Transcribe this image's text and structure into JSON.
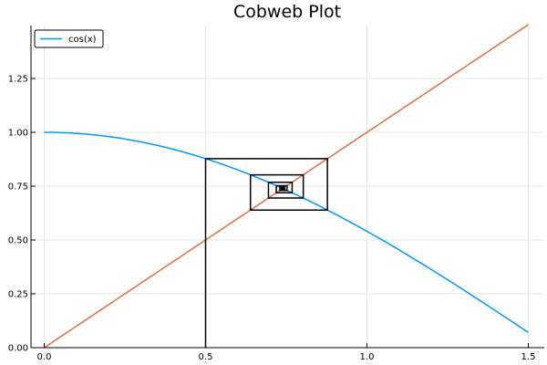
{
  "chart_data": {
    "type": "line",
    "title": "Cobweb Plot",
    "xlabel": "",
    "ylabel": "",
    "xlim": [
      0,
      1.5
    ],
    "ylim": [
      0,
      1.5
    ],
    "xticks": [
      0.0,
      0.5,
      1.0,
      1.5
    ],
    "xtick_labels": [
      "0.0",
      "0.5",
      "1.0",
      "1.5"
    ],
    "yticks": [
      0.0,
      0.25,
      0.5,
      0.75,
      1.0,
      1.25
    ],
    "ytick_labels": [
      "0.00",
      "0.25",
      "0.50",
      "0.75",
      "1.00",
      "1.25"
    ],
    "grid": true,
    "legend": {
      "placement": "top-left",
      "entries": [
        "cos(x)"
      ]
    },
    "series": [
      {
        "name": "cos(x)",
        "function": "cos",
        "x_range": [
          0,
          1.5
        ],
        "color": "#009AFA"
      },
      {
        "function": "identity",
        "x_range": [
          0,
          1.5
        ],
        "color": "#E26F46"
      },
      {
        "kind": "cobweb",
        "function": "cos",
        "x0": 0.5,
        "iterations": 20,
        "color": "#000000"
      }
    ]
  }
}
